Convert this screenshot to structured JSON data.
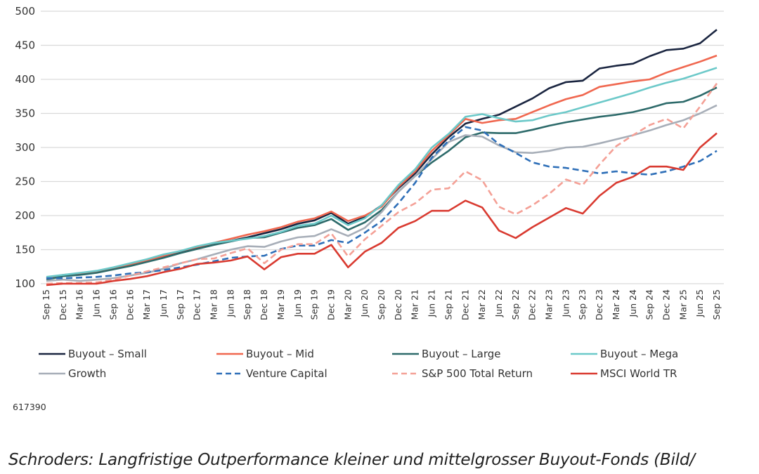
{
  "chart_data": {
    "type": "line",
    "title": "",
    "xlabel": "",
    "ylabel": "",
    "ylim": [
      100,
      500
    ],
    "yticks": [
      100,
      150,
      200,
      250,
      300,
      350,
      400,
      450,
      500
    ],
    "grid": true,
    "legend_placement": "bottom",
    "categories": [
      "Sep 15",
      "Dec 15",
      "Mar 16",
      "Jun 16",
      "Sep 16",
      "Dec 16",
      "Mar 17",
      "Jun 17",
      "Sep 17",
      "Dec 17",
      "Mar 18",
      "Jun 18",
      "Sep 18",
      "Dec 18",
      "Mar 19",
      "Jun 19",
      "Sep 19",
      "Dec 19",
      "Mar 20",
      "Jun 20",
      "Sep 20",
      "Dec 20",
      "Mar 21",
      "Jun 21",
      "Sep 21",
      "Dec 21",
      "Mar 22",
      "Jun 22",
      "Sep 22",
      "Dec 22",
      "Mar 23",
      "Jun 23",
      "Sep 23",
      "Dec 23",
      "Mar 24",
      "Jun 24",
      "Sep 24",
      "Dec 24",
      "Mar 25",
      "Jun 25",
      "Sep 25"
    ],
    "series": [
      {
        "name": "Buyout – Small",
        "color": "#1a2540",
        "dashed": false,
        "values": [
          108,
          112,
          114,
          117,
          122,
          128,
          133,
          140,
          146,
          152,
          158,
          163,
          168,
          174,
          180,
          188,
          193,
          204,
          188,
          198,
          215,
          240,
          262,
          290,
          315,
          335,
          342,
          348,
          360,
          372,
          387,
          396,
          398,
          416,
          420,
          423,
          434,
          443,
          445,
          453,
          473
        ]
      },
      {
        "name": "Buyout – Mid",
        "color": "#f0674f",
        "dashed": false,
        "values": [
          108,
          113,
          115,
          118,
          123,
          128,
          134,
          141,
          148,
          154,
          160,
          166,
          172,
          177,
          183,
          191,
          196,
          206,
          192,
          200,
          213,
          242,
          265,
          295,
          318,
          342,
          336,
          340,
          342,
          352,
          362,
          371,
          377,
          389,
          393,
          397,
          400,
          410,
          418,
          426,
          435
        ]
      },
      {
        "name": "Buyout – Large",
        "color": "#2d6a6a",
        "dashed": false,
        "values": [
          106,
          111,
          113,
          116,
          121,
          126,
          132,
          138,
          145,
          151,
          157,
          162,
          167,
          168,
          175,
          182,
          186,
          195,
          179,
          190,
          208,
          235,
          258,
          278,
          295,
          315,
          322,
          321,
          321,
          326,
          332,
          337,
          341,
          345,
          348,
          352,
          358,
          365,
          367,
          376,
          388
        ]
      },
      {
        "name": "Buyout – Mega",
        "color": "#6cc9c9",
        "dashed": false,
        "values": [
          110,
          113,
          116,
          119,
          124,
          130,
          136,
          143,
          148,
          155,
          160,
          163,
          166,
          170,
          176,
          185,
          188,
          200,
          186,
          196,
          215,
          245,
          268,
          300,
          320,
          345,
          349,
          343,
          338,
          340,
          347,
          352,
          359,
          366,
          373,
          380,
          388,
          395,
          401,
          409,
          417
        ]
      },
      {
        "name": "Growth",
        "color": "#a7aeb8",
        "dashed": false,
        "values": [
          104,
          106,
          104,
          106,
          108,
          112,
          116,
          122,
          130,
          136,
          143,
          150,
          155,
          154,
          162,
          168,
          170,
          180,
          170,
          182,
          205,
          235,
          258,
          283,
          308,
          318,
          316,
          303,
          293,
          292,
          295,
          300,
          301,
          306,
          312,
          318,
          325,
          333,
          340,
          350,
          362
        ]
      },
      {
        "name": "Venture Capital",
        "color": "#2e6fb8",
        "dashed": true,
        "values": [
          108,
          108,
          109,
          110,
          112,
          115,
          117,
          120,
          124,
          128,
          133,
          138,
          140,
          141,
          151,
          156,
          156,
          164,
          160,
          175,
          192,
          218,
          248,
          285,
          310,
          330,
          325,
          305,
          292,
          278,
          272,
          270,
          266,
          262,
          265,
          262,
          260,
          265,
          272,
          280,
          295
        ]
      },
      {
        "name": "S&P 500 Total Return",
        "color": "#f4a096",
        "dashed": true,
        "values": [
          100,
          101,
          101,
          102,
          106,
          112,
          118,
          124,
          130,
          136,
          137,
          145,
          152,
          130,
          150,
          158,
          158,
          174,
          140,
          165,
          185,
          205,
          218,
          238,
          240,
          265,
          252,
          213,
          202,
          215,
          232,
          253,
          245,
          275,
          302,
          318,
          333,
          342,
          328,
          360,
          394
        ]
      },
      {
        "name": "MSCI World TR",
        "color": "#d93a30",
        "dashed": false,
        "values": [
          98,
          100,
          100,
          100,
          104,
          107,
          111,
          117,
          122,
          129,
          131,
          134,
          140,
          121,
          139,
          144,
          144,
          157,
          124,
          147,
          160,
          182,
          192,
          207,
          207,
          222,
          212,
          178,
          167,
          183,
          197,
          211,
          203,
          229,
          248,
          257,
          272,
          272,
          267,
          300,
          321
        ]
      }
    ]
  },
  "source_note": "617390",
  "caption": "Schroders: Langfristige Outperformance kleiner und mittelgrosser Buyout-Fonds (Bild/"
}
